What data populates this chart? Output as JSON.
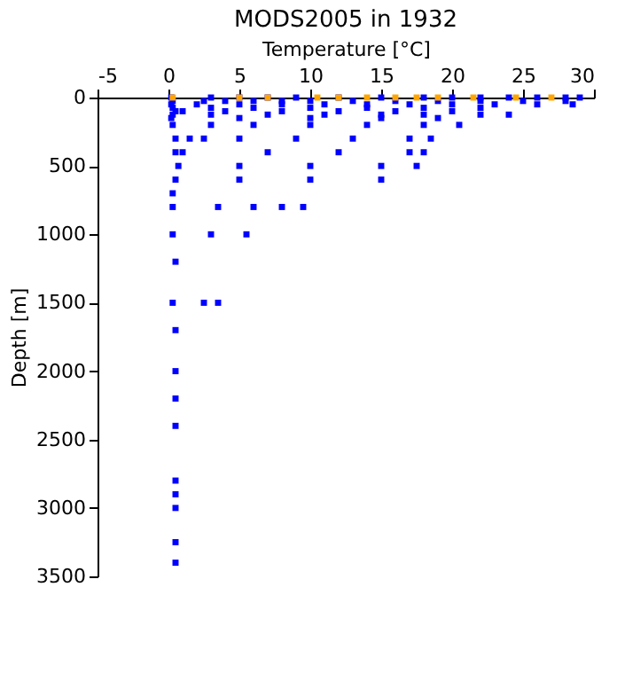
{
  "chart_data": {
    "type": "scatter",
    "title": "MODS2005 in 1932",
    "xlabel": "Temperature [°C]",
    "ylabel": "Depth [m]",
    "xlim": [
      -5,
      30
    ],
    "ylim": [
      3500,
      0
    ],
    "xticks": [
      -5,
      0,
      5,
      10,
      15,
      20,
      25,
      30
    ],
    "yticks": [
      0,
      500,
      1000,
      1500,
      2000,
      2500,
      3000,
      3500
    ],
    "grid": false,
    "legend": false,
    "marker": "square",
    "series": [
      {
        "color": "#0000ff",
        "x": [
          0.2,
          3,
          5,
          7,
          9,
          12,
          15,
          18,
          20,
          22,
          24,
          26,
          28,
          29,
          0.3,
          2.5,
          4,
          6,
          8,
          10,
          13,
          16,
          19,
          22,
          25,
          28,
          0.2,
          2,
          5,
          8,
          11,
          14,
          17,
          20,
          23,
          26,
          28.5,
          0.3,
          3,
          6,
          10,
          14,
          18,
          22,
          0.5,
          1,
          4,
          8,
          12,
          16,
          20,
          0.3,
          3,
          7,
          11,
          15,
          18,
          22,
          24,
          0.2,
          5,
          10,
          15,
          19,
          0.3,
          3,
          6,
          10,
          14,
          18,
          20.5,
          0.5,
          1.5,
          2.5,
          5,
          9,
          13,
          17,
          18.5,
          0.5,
          1,
          7,
          12,
          17,
          18,
          0.7,
          5,
          10,
          15,
          17.5,
          0.5,
          5,
          10,
          15,
          0.3,
          0.3,
          3.5,
          6,
          8,
          9.5,
          0.3,
          3,
          5.5,
          0.5,
          0.3,
          2.5,
          3.5,
          0.5,
          0.5,
          0.5,
          0.5,
          0.5,
          0.5,
          0.5,
          0.5,
          0.5
        ],
        "values": [
          0,
          0,
          0,
          0,
          0,
          0,
          0,
          0,
          0,
          0,
          0,
          0,
          0,
          0,
          25,
          25,
          25,
          25,
          25,
          25,
          25,
          25,
          25,
          25,
          25,
          25,
          50,
          50,
          50,
          50,
          50,
          50,
          50,
          50,
          50,
          50,
          50,
          75,
          75,
          75,
          75,
          75,
          75,
          75,
          100,
          100,
          100,
          100,
          100,
          100,
          100,
          125,
          125,
          125,
          125,
          125,
          125,
          125,
          125,
          150,
          150,
          150,
          150,
          150,
          200,
          200,
          200,
          200,
          200,
          200,
          200,
          300,
          300,
          300,
          300,
          300,
          300,
          300,
          300,
          400,
          400,
          400,
          400,
          400,
          400,
          500,
          500,
          500,
          500,
          500,
          600,
          600,
          600,
          600,
          700,
          800,
          800,
          800,
          800,
          800,
          1000,
          1000,
          1000,
          1200,
          1500,
          1500,
          1500,
          1700,
          2000,
          2200,
          2400,
          2800,
          2900,
          3000,
          3250,
          3400
        ]
      },
      {
        "color": "#ffa500",
        "x": [
          0.3,
          5,
          7,
          10.5,
          12,
          14,
          16,
          17.5,
          19,
          21.5,
          24.5,
          27
        ],
        "values": [
          0,
          0,
          0,
          0,
          0,
          0,
          0,
          0,
          0,
          0,
          0,
          0
        ]
      }
    ]
  }
}
